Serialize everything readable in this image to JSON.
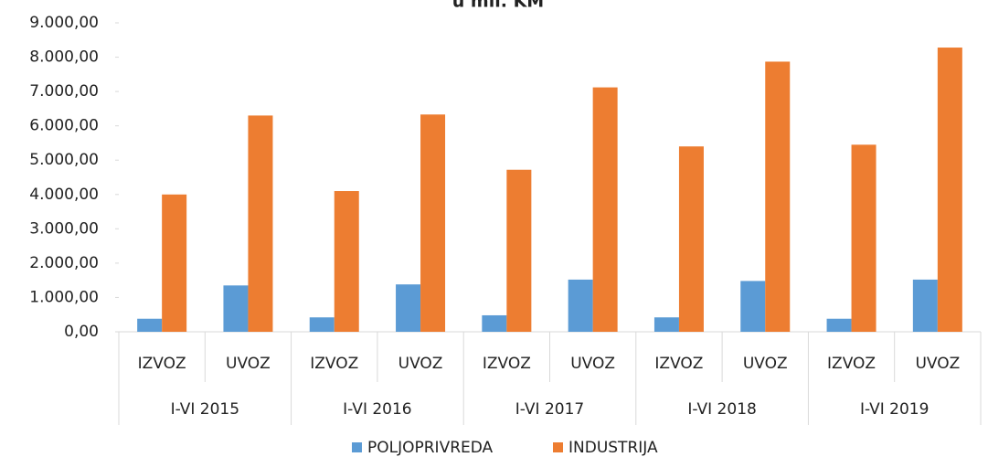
{
  "chart_data": {
    "type": "bar",
    "title": "u mil. KM",
    "categories": [
      "IZVOZ",
      "UVOZ",
      "IZVOZ",
      "UVOZ",
      "IZVOZ",
      "UVOZ",
      "IZVOZ",
      "UVOZ",
      "IZVOZ",
      "UVOZ"
    ],
    "groups": [
      "I-VI 2015",
      "I-VI 2016",
      "I-VI 2017",
      "I-VI 2018",
      "I-VI 2019"
    ],
    "series": [
      {
        "name": "POLJOPRIVREDA",
        "color": "#5b9bd5",
        "values": [
          380,
          1350,
          420,
          1380,
          480,
          1520,
          420,
          1480,
          380,
          1520
        ]
      },
      {
        "name": "INDUSTRIJA",
        "color": "#ed7d31",
        "values": [
          4000,
          6300,
          4100,
          6330,
          4720,
          7120,
          5400,
          7870,
          5450,
          8280
        ]
      }
    ],
    "ylim": [
      0,
      9000
    ],
    "yticks": [
      {
        "value": 0,
        "label": "0,00"
      },
      {
        "value": 1000,
        "label": "1.000,00"
      },
      {
        "value": 2000,
        "label": "2.000,00"
      },
      {
        "value": 3000,
        "label": "3.000,00"
      },
      {
        "value": 4000,
        "label": "4.000,00"
      },
      {
        "value": 5000,
        "label": "5.000,00"
      },
      {
        "value": 6000,
        "label": "6.000,00"
      },
      {
        "value": 7000,
        "label": "7.000,00"
      },
      {
        "value": 8000,
        "label": "8.000,00"
      },
      {
        "value": 9000,
        "label": "9.000,00"
      }
    ],
    "legend": "bottom"
  }
}
